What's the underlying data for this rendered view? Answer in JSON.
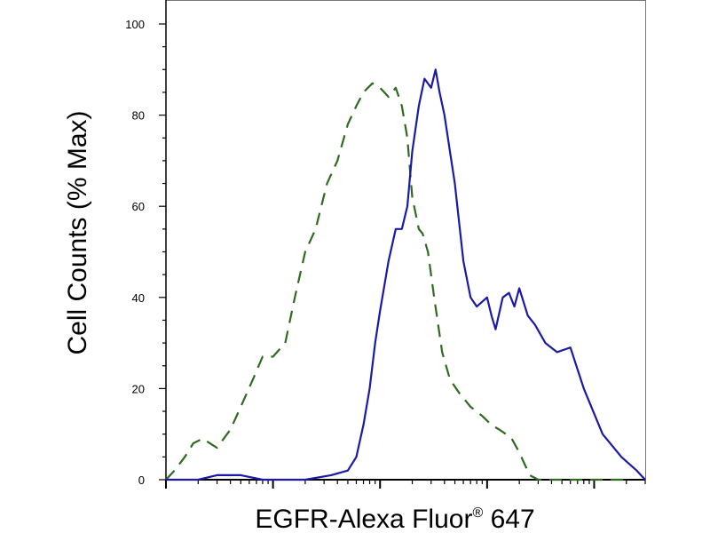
{
  "chart_data": {
    "type": "line",
    "title": "",
    "xlabel": "EGFR-Alexa Fluor",
    "xlabel_superscript": "®",
    "xlabel_suffix": " 647",
    "ylabel": "Cell Counts (% Max)",
    "xscale": "log",
    "xlim": [
      1,
      30000
    ],
    "ylim": [
      0,
      100
    ],
    "yticks": [
      0,
      20,
      40,
      60,
      80,
      100
    ],
    "ytick_labels": [
      "0",
      "20",
      "40",
      "60",
      "80",
      "100"
    ],
    "xtick_labels_shown": false,
    "grid": false,
    "legend": "none",
    "series": [
      {
        "color": "#2e6b1f",
        "dash": "dashed",
        "x": [
          1,
          1.2,
          1.5,
          1.8,
          2.2,
          3,
          4,
          5,
          6.5,
          8,
          10,
          13,
          16,
          20,
          25,
          32,
          40,
          50,
          60,
          70,
          85,
          100,
          120,
          140,
          160,
          180,
          200,
          230,
          250,
          280,
          320,
          380,
          450,
          550,
          700,
          900,
          1100,
          1300,
          1500,
          1700,
          2000,
          2500,
          3000,
          4000,
          6000,
          10000,
          20000
        ],
        "y": [
          0,
          2,
          5,
          8,
          9,
          7,
          11,
          16,
          22,
          27,
          27,
          30,
          40,
          50,
          55,
          65,
          70,
          78,
          82,
          85,
          87,
          86,
          84,
          86,
          82,
          75,
          62,
          55,
          54,
          50,
          40,
          28,
          22,
          19,
          16,
          14,
          12,
          11,
          10,
          9,
          6,
          1,
          0,
          0,
          0,
          0,
          0
        ]
      },
      {
        "color": "#1a1aa6",
        "dash": "solid",
        "x": [
          1,
          1.5,
          2,
          3,
          5,
          8,
          12,
          20,
          35,
          50,
          60,
          70,
          80,
          90,
          100,
          120,
          140,
          160,
          180,
          200,
          230,
          260,
          300,
          330,
          360,
          400,
          450,
          500,
          600,
          700,
          800,
          1000,
          1100,
          1200,
          1400,
          1600,
          1800,
          2000,
          2400,
          2800,
          3500,
          4500,
          6000,
          8000,
          12000,
          18000,
          25000,
          30000
        ],
        "y": [
          0,
          0,
          0,
          1,
          1,
          0,
          0,
          0,
          1,
          2,
          5,
          12,
          20,
          30,
          37,
          48,
          55,
          55,
          60,
          72,
          82,
          88,
          86,
          90,
          85,
          80,
          72,
          65,
          48,
          40,
          38,
          40,
          36,
          33,
          40,
          41,
          38,
          42,
          36,
          34,
          30,
          28,
          29,
          20,
          10,
          5,
          2,
          0
        ]
      }
    ]
  }
}
